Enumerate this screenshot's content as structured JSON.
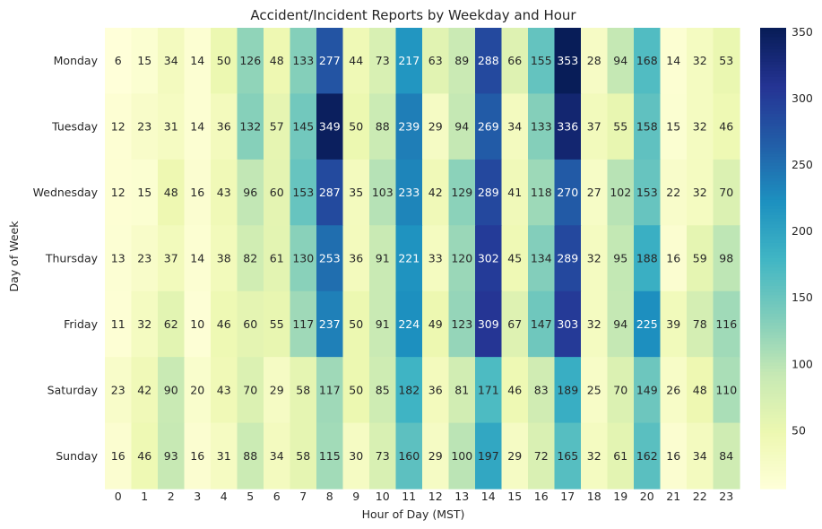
{
  "chart_data": {
    "type": "heatmap",
    "title": "Accident/Incident Reports by Weekday and Hour",
    "xlabel": "Hour of Day (MST)",
    "ylabel": "Day of Week",
    "x_categories": [
      "0",
      "1",
      "2",
      "3",
      "4",
      "5",
      "6",
      "7",
      "8",
      "9",
      "10",
      "11",
      "12",
      "13",
      "14",
      "15",
      "16",
      "17",
      "18",
      "19",
      "20",
      "21",
      "22",
      "23"
    ],
    "y_categories": [
      "Monday",
      "Tuesday",
      "Wednesday",
      "Thursday",
      "Friday",
      "Saturday",
      "Sunday"
    ],
    "values": [
      [
        6,
        15,
        34,
        14,
        50,
        126,
        48,
        133,
        277,
        44,
        73,
        217,
        63,
        89,
        288,
        66,
        155,
        353,
        28,
        94,
        168,
        14,
        32,
        53
      ],
      [
        12,
        23,
        31,
        14,
        36,
        132,
        57,
        145,
        349,
        50,
        88,
        239,
        29,
        94,
        269,
        34,
        133,
        336,
        37,
        55,
        158,
        15,
        32,
        46
      ],
      [
        12,
        15,
        48,
        16,
        43,
        96,
        60,
        153,
        287,
        35,
        103,
        233,
        42,
        129,
        289,
        41,
        118,
        270,
        27,
        102,
        153,
        22,
        32,
        70
      ],
      [
        13,
        23,
        37,
        14,
        38,
        82,
        61,
        130,
        253,
        36,
        91,
        221,
        33,
        120,
        302,
        45,
        134,
        289,
        32,
        95,
        188,
        16,
        59,
        98
      ],
      [
        11,
        32,
        62,
        10,
        46,
        60,
        55,
        117,
        237,
        50,
        91,
        224,
        49,
        123,
        309,
        67,
        147,
        303,
        32,
        94,
        225,
        39,
        78,
        116
      ],
      [
        23,
        42,
        90,
        20,
        43,
        70,
        29,
        58,
        117,
        50,
        85,
        182,
        36,
        81,
        171,
        46,
        83,
        189,
        25,
        70,
        149,
        26,
        48,
        110
      ],
      [
        16,
        46,
        93,
        16,
        31,
        88,
        34,
        58,
        115,
        30,
        73,
        160,
        29,
        100,
        197,
        29,
        72,
        165,
        32,
        61,
        162,
        16,
        34,
        84
      ]
    ],
    "colormap": "YlGnBu",
    "vmin": 6,
    "vmax": 353,
    "colorbar_ticks": [
      50,
      100,
      150,
      200,
      250,
      300,
      350
    ],
    "annotated": true,
    "grid": false
  }
}
